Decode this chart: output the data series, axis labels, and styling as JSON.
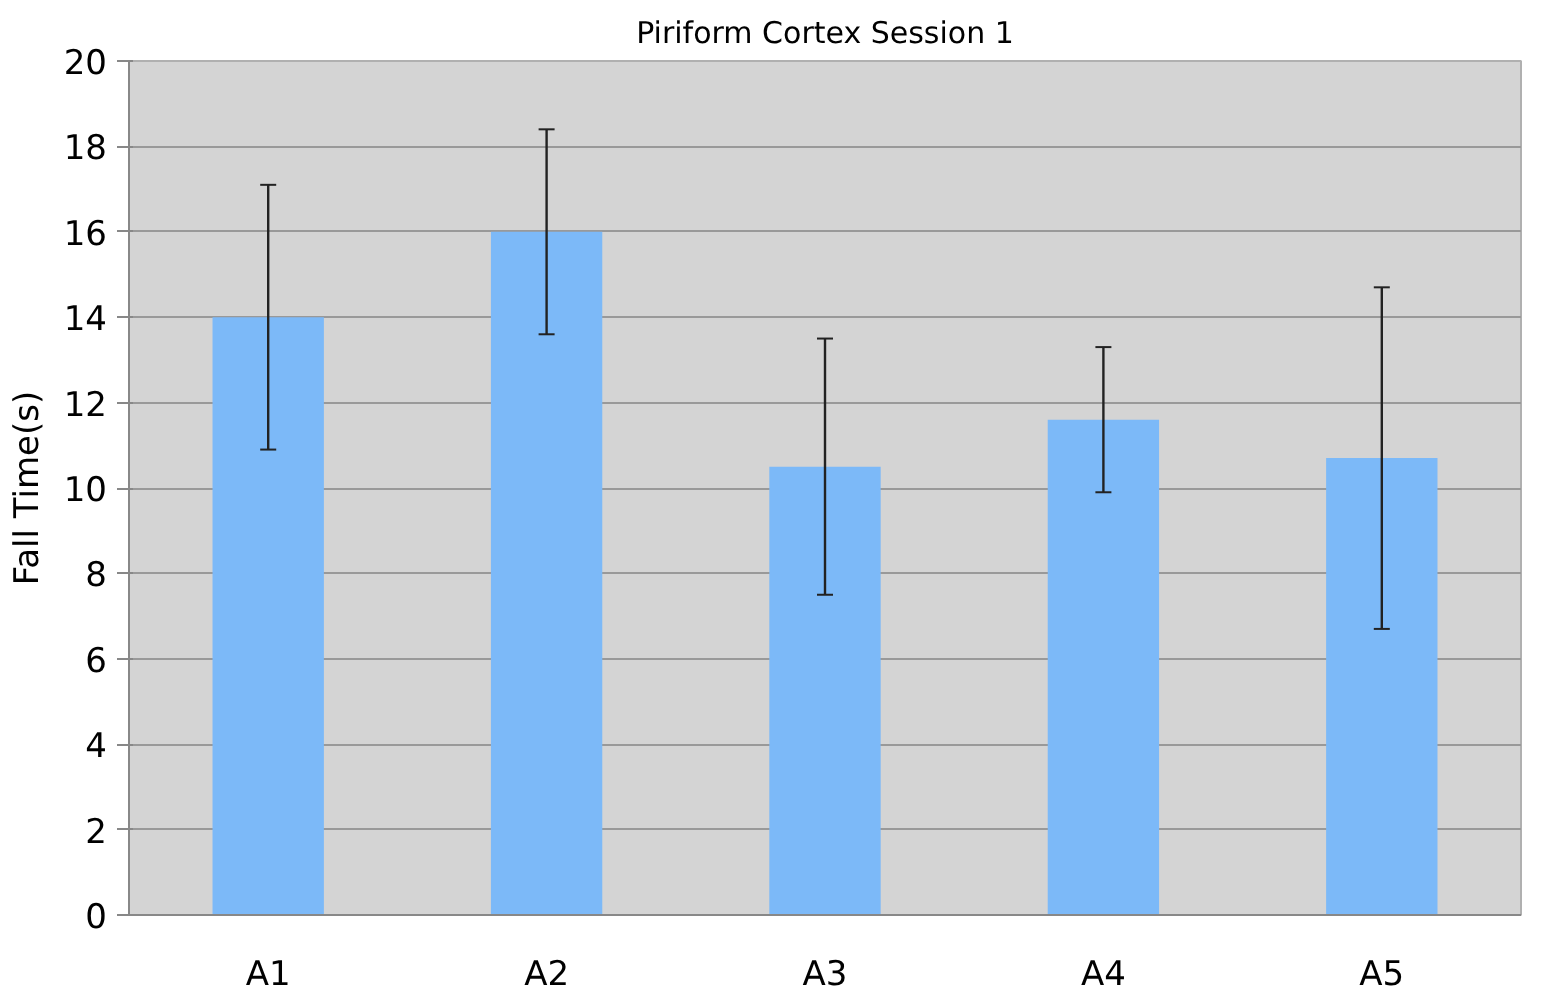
{
  "chart_data": {
    "type": "bar",
    "title": "Piriform Cortex Session 1",
    "ylabel": "Fall Time(s)",
    "categories": [
      "A1",
      "A2",
      "A3",
      "A4",
      "A5"
    ],
    "values": [
      14,
      16,
      10.5,
      11.6,
      10.7
    ],
    "errors": [
      3.1,
      2.4,
      3.0,
      1.7,
      4.0
    ],
    "color": "#7cb9f8",
    "ylim": [
      0,
      20
    ],
    "yticks": [
      0,
      2,
      4,
      6,
      8,
      10,
      12,
      14,
      16,
      18,
      20
    ],
    "grid": "y"
  }
}
